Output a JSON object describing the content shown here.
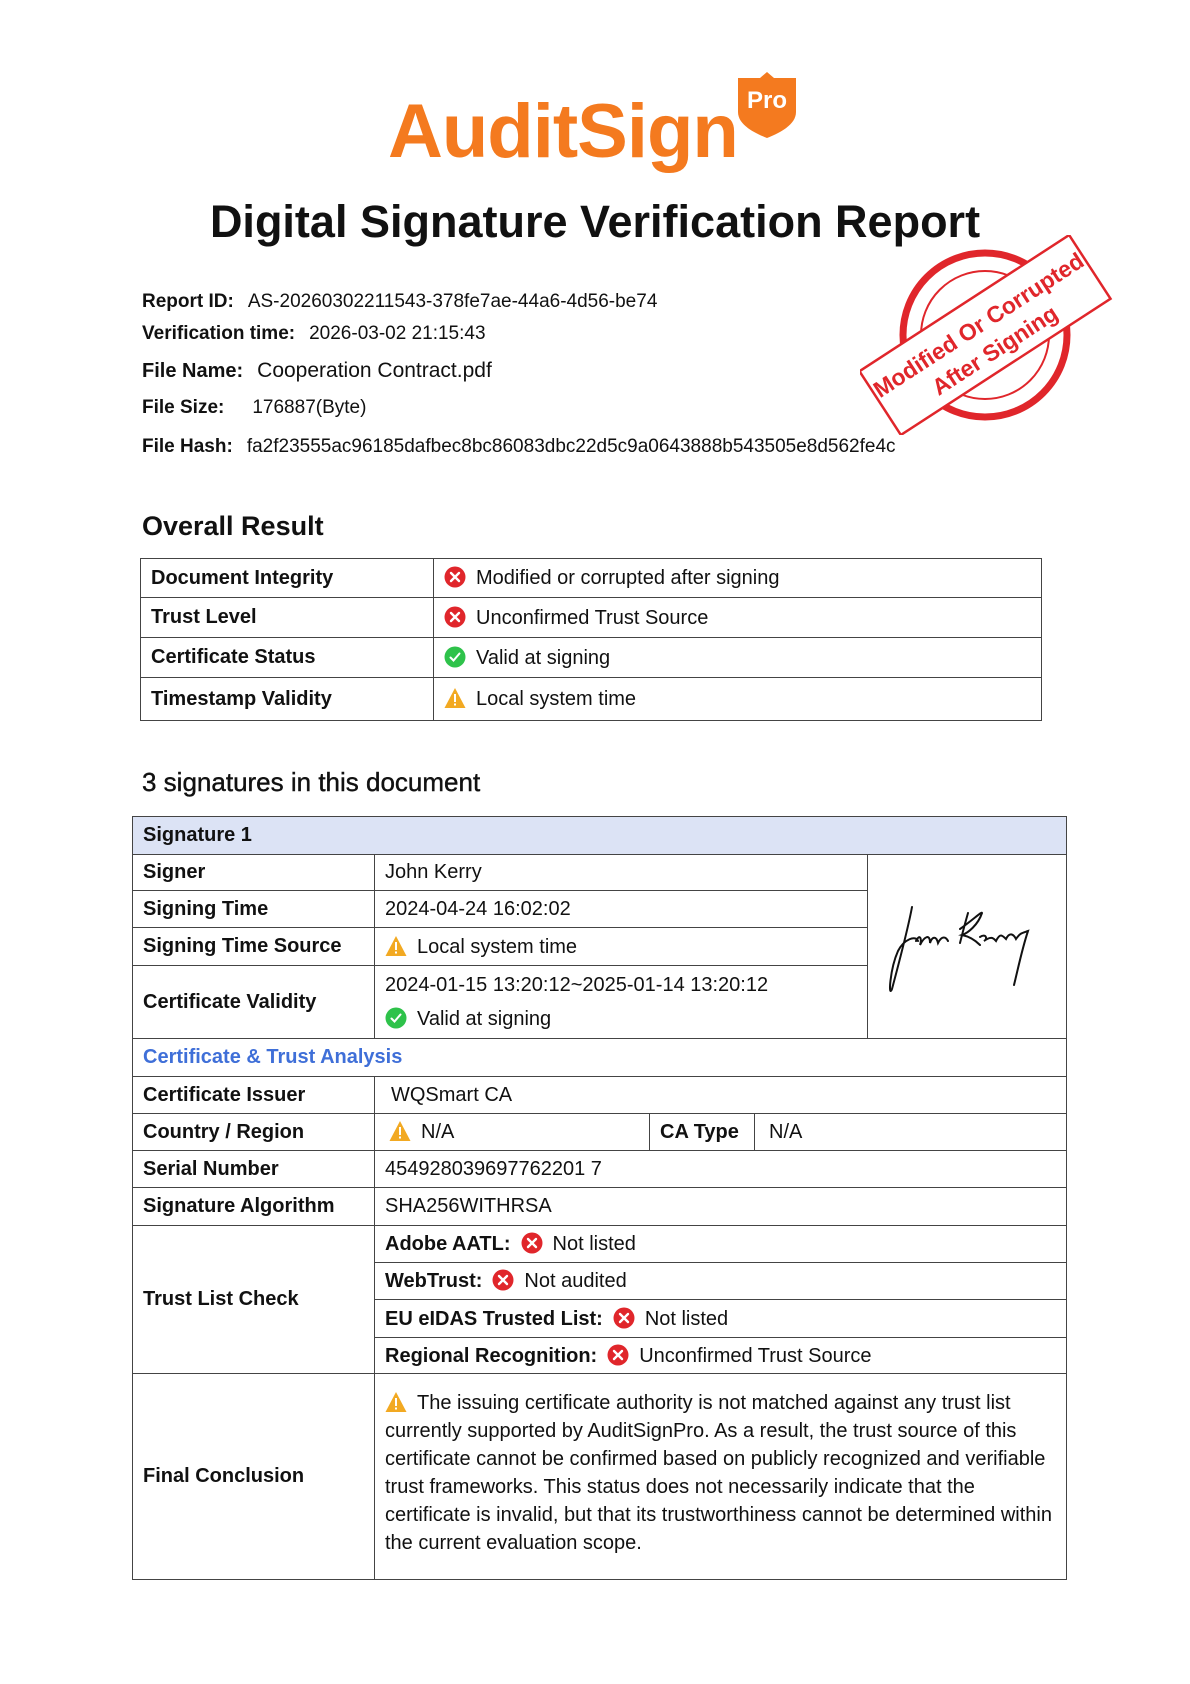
{
  "logo": {
    "text": "AuditSign",
    "badge": "Pro",
    "color": "#f47a1f"
  },
  "title": "Digital Signature Verification Report",
  "meta": [
    {
      "label": "Report ID:",
      "value": "AS-20260302211543-378fe7ae-44a6-4d56-be74"
    },
    {
      "label": "Verification time:",
      "value": "2026-03-02 21:15:43"
    },
    {
      "label": "File Name:",
      "value": "Cooperation Contract.pdf"
    },
    {
      "label": "File Size:",
      "value": "176887(Byte)"
    },
    {
      "label": "File Hash:",
      "value": "fa2f23555ac96185dafbec8bc86083dbc22d5c9a0643888b543505e8d562fe4c"
    }
  ],
  "stamp": {
    "line1": "Modified Or Corrupted",
    "line2": "After Signing",
    "color": "#e0262b"
  },
  "overall": {
    "heading": "Overall Result",
    "rows": [
      {
        "label": "Document Integrity",
        "status": "error",
        "value": "Modified or corrupted after signing"
      },
      {
        "label": "Trust Level",
        "status": "error",
        "value": "Unconfirmed Trust Source"
      },
      {
        "label": "Certificate Status",
        "status": "ok",
        "value": "Valid at signing"
      },
      {
        "label": "Timestamp Validity",
        "status": "warning",
        "value": "Local system time"
      }
    ]
  },
  "signatures_heading": "3 signatures in this document",
  "signature": {
    "header": "Signature 1",
    "signer_label": "Signer",
    "signer": "John Kerry",
    "time_label": "Signing Time",
    "time": "2024-04-24 16:02:02",
    "source_label": "Signing Time Source",
    "source": "Local system time",
    "validity_label": "Certificate Validity",
    "validity_range": "2024-01-15 13:20:12~2025-01-14 13:20:12",
    "validity_status": "Valid at signing",
    "analysis_heading": "Certificate & Trust Analysis",
    "issuer_label": "Certificate Issuer",
    "issuer": "WQSmart CA",
    "country_label": "Country / Region",
    "country": "N/A",
    "ca_type_label": "CA Type",
    "ca_type": "N/A",
    "serial_label": "Serial Number",
    "serial": "454928039697762201 7",
    "algo_label": "Signature Algorithm",
    "algo": "SHA256WITHRSA",
    "trust_label": "Trust List Check",
    "trust": [
      {
        "label": "Adobe AATL:",
        "value": "Not listed"
      },
      {
        "label": "WebTrust:",
        "value": "Not audited"
      },
      {
        "label": "EU eIDAS Trusted List:",
        "value": "Not listed"
      },
      {
        "label": "Regional Recognition:",
        "value": "Unconfirmed Trust Source"
      }
    ],
    "conclusion_label": "Final Conclusion",
    "conclusion": "The issuing certificate authority is not matched against any trust list currently supported by AuditSignPro. As a result, the trust source of this certificate cannot be confirmed based on publicly recognized and verifiable trust frameworks. This status does not necessarily indicate that the certificate is invalid, but that its trustworthiness cannot be determined within the current evaluation scope."
  }
}
